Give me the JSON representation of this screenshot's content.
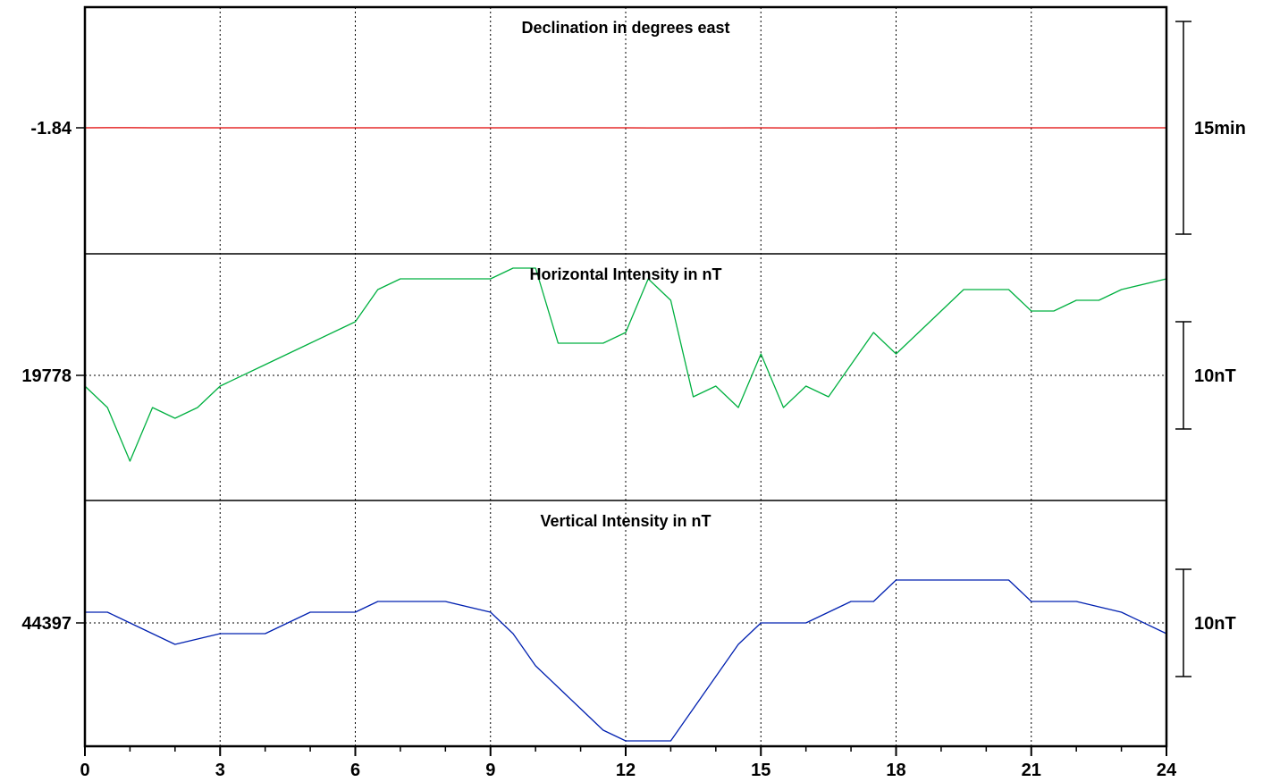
{
  "chart_data": {
    "type": "line",
    "x_axis": {
      "range": [
        0,
        24
      ],
      "major_ticks": [
        0,
        3,
        6,
        9,
        12,
        15,
        18,
        21,
        24
      ],
      "tick_labels": [
        "0",
        "3",
        "6",
        "9",
        "12",
        "15",
        "18",
        "21",
        "24"
      ],
      "minor_step": 1,
      "grid": true
    },
    "panels": [
      {
        "title": "Declination in degrees east",
        "color": "#e00000",
        "baseline_label": "-1.84",
        "baseline_value": -1.84,
        "scale_label": "15min",
        "scale_span": 15,
        "x": [
          0,
          0.5,
          1,
          1.5,
          2,
          2.5,
          3,
          3.5,
          4,
          5,
          6,
          7,
          8,
          9,
          10,
          11,
          12,
          12.5,
          13,
          14,
          15,
          15.5,
          16,
          17,
          17.5,
          18,
          18.5,
          19,
          19.5,
          20,
          20.5,
          21,
          21.5,
          22,
          23,
          24
        ],
        "y": [
          -1.84,
          -1.835,
          -1.836,
          -1.838,
          -1.839,
          -1.84,
          -1.84,
          -1.843,
          -1.842,
          -1.843,
          -1.843,
          -1.842,
          -1.842,
          -1.841,
          -1.842,
          -1.843,
          -1.843,
          -1.845,
          -1.844,
          -1.844,
          -1.843,
          -1.845,
          -1.844,
          -1.844,
          -1.844,
          -1.842,
          -1.842,
          -1.841,
          -1.842,
          -1.84,
          -1.84,
          -1.841,
          -1.841,
          -1.84,
          -1.84,
          -1.84
        ]
      },
      {
        "title": "Horizontal Intensity in nT",
        "color": "#00b040",
        "baseline_label": "19778",
        "baseline_value": 19778,
        "scale_label": "10nT",
        "scale_span": 10,
        "x": [
          0,
          0.5,
          1,
          1.5,
          2,
          2.5,
          3,
          4,
          5,
          6,
          6.5,
          7,
          8,
          9,
          9.5,
          10,
          10.5,
          11,
          11.5,
          12,
          12.5,
          13,
          13.5,
          14,
          14.5,
          15,
          15.5,
          16,
          16.5,
          17,
          17.5,
          18,
          18.5,
          19,
          19.5,
          20,
          20.5,
          21,
          21.5,
          22,
          22.5,
          23,
          24
        ],
        "y": [
          19777,
          19775,
          19770,
          19775,
          19774,
          19775,
          19777,
          19779,
          19781,
          19783,
          19786,
          19787,
          19787,
          19787,
          19788,
          19788,
          19781,
          19781,
          19781,
          19782,
          19787,
          19785,
          19776,
          19777,
          19775,
          19780,
          19775,
          19777,
          19776,
          19779,
          19782,
          19780,
          19782,
          19784,
          19786,
          19786,
          19786,
          19784,
          19784,
          19785,
          19785,
          19786,
          19787
        ]
      },
      {
        "title": "Vertical Intensity in nT",
        "color": "#0020b0",
        "baseline_label": "44397",
        "baseline_value": 44397,
        "scale_label": "10nT",
        "scale_span": 10,
        "x": [
          0,
          0.5,
          1,
          1.5,
          2,
          3,
          4,
          5,
          6,
          6.5,
          7,
          8,
          9,
          9.5,
          10,
          10.5,
          11,
          11.5,
          12,
          12.5,
          13,
          13.5,
          14,
          14.5,
          15,
          16,
          17,
          17.5,
          18,
          18.5,
          19,
          19.5,
          20,
          20.5,
          21,
          22,
          23,
          24
        ],
        "y": [
          44398,
          44398,
          44397,
          44396,
          44395,
          44396,
          44396,
          44398,
          44398,
          44399,
          44399,
          44399,
          44398,
          44396,
          44393,
          44391,
          44389,
          44387,
          44386,
          44386,
          44386,
          44389,
          44392,
          44395,
          44397,
          44397,
          44399,
          44399,
          44401,
          44401,
          44401,
          44401,
          44401,
          44401,
          44399,
          44399,
          44398,
          44396
        ]
      }
    ]
  }
}
